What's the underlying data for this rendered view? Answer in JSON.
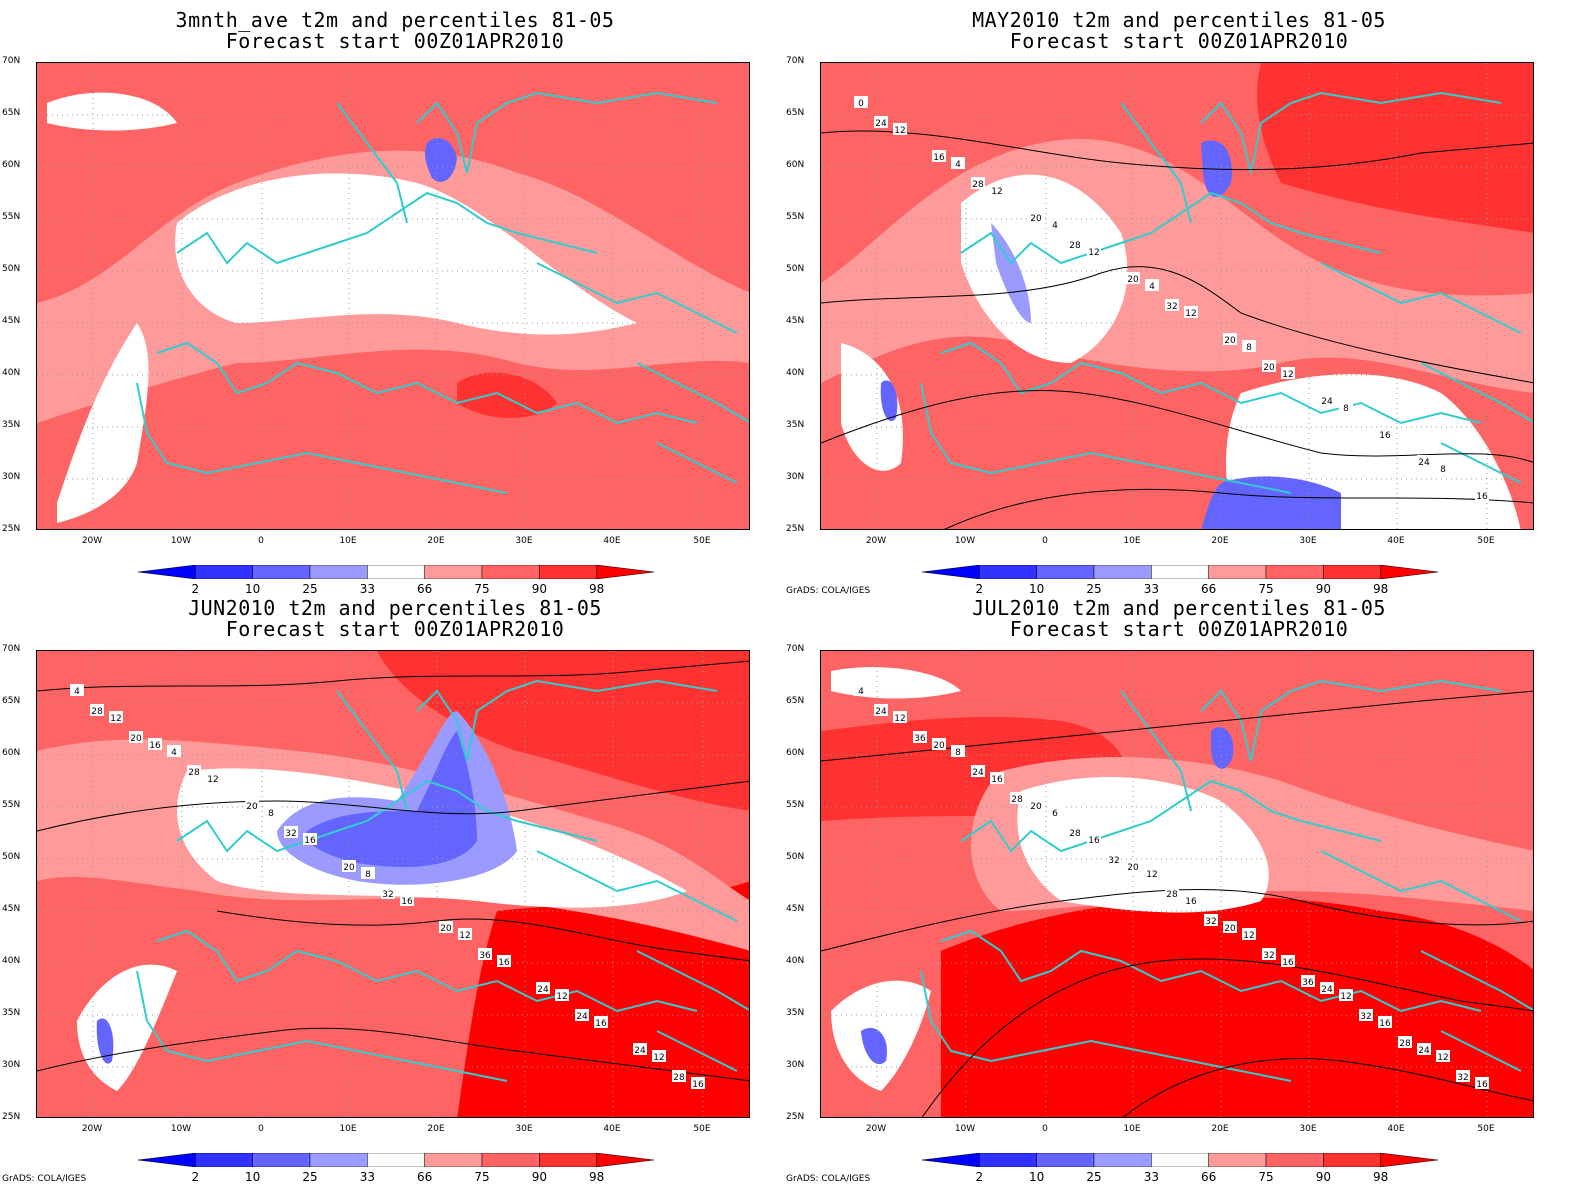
{
  "panels": [
    {
      "title_line1": "3mnth_ave t2m and percentiles 81-05",
      "title_line2": "Forecast start 00Z01APR2010",
      "credit": "",
      "contour_labels": []
    },
    {
      "title_line1": "MAY2010 t2m and percentiles 81-05",
      "title_line2": "Forecast start 00Z01APR2010",
      "credit": "GrADS: COLA/IGES",
      "contour_labels": [
        "0",
        "4",
        "4",
        "4",
        "8",
        "8",
        "8",
        "12",
        "12",
        "12",
        "12",
        "12",
        "16",
        "16",
        "16",
        "20",
        "20",
        "20",
        "24",
        "24",
        "24",
        "28",
        "28",
        "32",
        "20"
      ]
    },
    {
      "title_line1": "JUN2010 t2m and percentiles 81-05",
      "title_line2": "Forecast start 00Z01APR2010",
      "credit": "GrADS: COLA/IGES",
      "contour_labels": [
        "4",
        "4",
        "8",
        "8",
        "12",
        "12",
        "12",
        "12",
        "12",
        "16",
        "16",
        "16",
        "16",
        "16",
        "16",
        "20",
        "20",
        "20",
        "24",
        "24",
        "28",
        "28",
        "32",
        "32",
        "36",
        "24",
        "28",
        "20"
      ]
    },
    {
      "title_line1": "JUL2010 t2m and percentiles 81-05",
      "title_line2": "Forecast start 00Z01APR2010",
      "credit": "GrADS: COLA/IGES",
      "contour_labels": [
        "4",
        "8",
        "6",
        "12",
        "12",
        "12",
        "12",
        "12",
        "16",
        "16",
        "16",
        "16",
        "16",
        "16",
        "20",
        "20",
        "20",
        "20",
        "24",
        "24",
        "24",
        "24",
        "28",
        "28",
        "32",
        "32",
        "32",
        "36",
        "28",
        "32",
        "32",
        "36",
        "28"
      ]
    }
  ],
  "lat_labels": [
    "70N",
    "65N",
    "60N",
    "55N",
    "50N",
    "45N",
    "40N",
    "35N",
    "30N",
    "25N"
  ],
  "lon_labels": [
    "20W",
    "10W",
    "0",
    "10E",
    "20E",
    "30E",
    "40E",
    "50E"
  ],
  "colorbar": {
    "labels": [
      "2",
      "10",
      "25",
      "33",
      "66",
      "75",
      "90",
      "98"
    ],
    "colors": [
      "#0000ff",
      "#3232ff",
      "#6464ff",
      "#9b9bff",
      "#ffffff",
      "#ff9a9a",
      "#ff6464",
      "#ff3232",
      "#ff0000"
    ]
  },
  "map_colors": {
    "coast": "#33cccc",
    "contour": "#000000",
    "grid": "#999999"
  }
}
